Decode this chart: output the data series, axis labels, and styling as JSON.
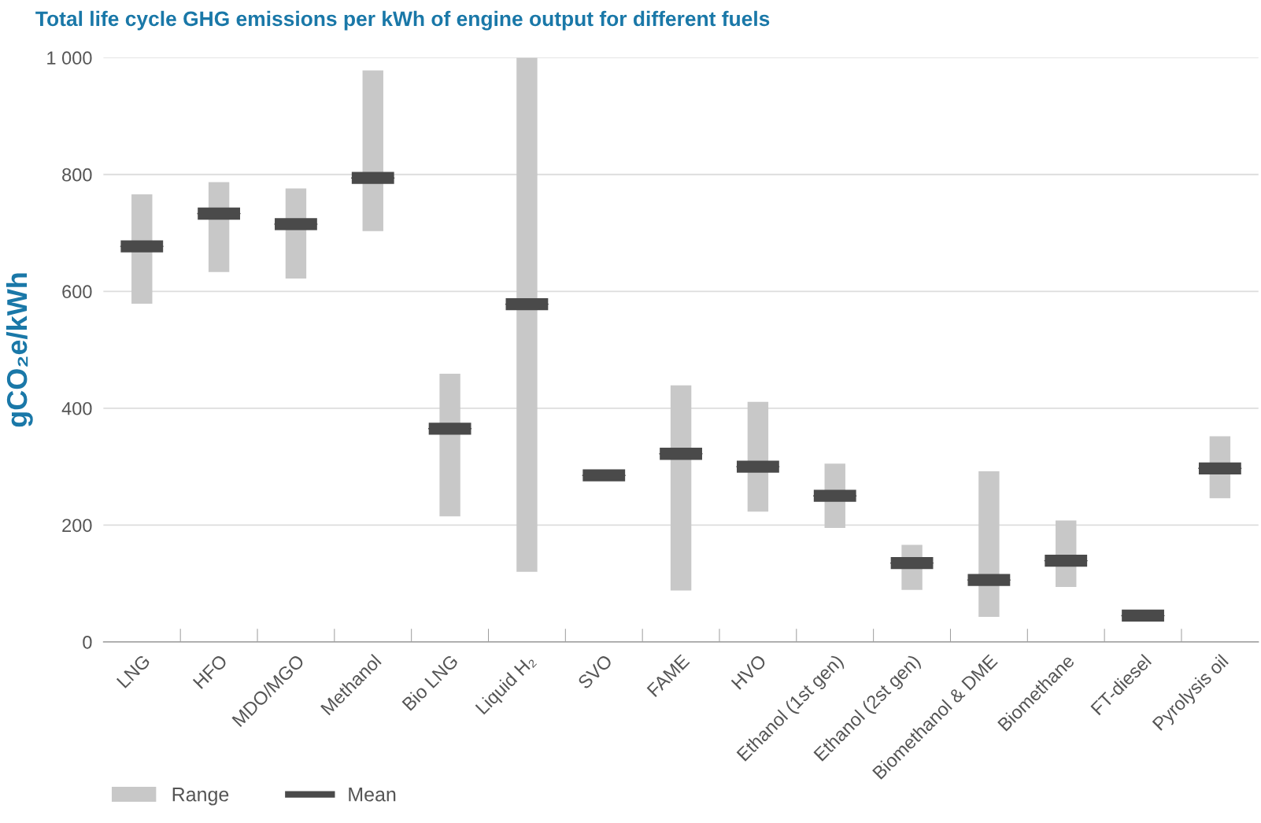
{
  "chart_data": {
    "type": "bar",
    "title": "Total life cycle GHG emissions per kWh of engine output for different fuels",
    "ylabel": "gCO₂e/kWh",
    "categories": [
      "LNG",
      "HFO",
      "MDO/MGO",
      "Methanol",
      "Bio LNG",
      "Liquid H₂",
      "SVO",
      "FAME",
      "HVO",
      "Ethanol (1st gen)",
      "Ethanol (2st gen)",
      "Biomethanol & DME",
      "Biomethane",
      "FT-diesel",
      "Pyrolysis oil"
    ],
    "series": [
      {
        "name": "Range",
        "color": "#c8c8c8",
        "base": [
          579,
          633,
          622,
          703,
          215,
          120,
          null,
          88,
          223,
          195,
          89,
          43,
          94,
          null,
          246
        ],
        "values": [
          187,
          154,
          154,
          275,
          244,
          880,
          null,
          351,
          188,
          110,
          77,
          249,
          114,
          null,
          106
        ]
      },
      {
        "name": "Mean",
        "type": "box",
        "color": "#4a4a4a",
        "boxes": [
          {
            "low": 677,
            "q1": 677,
            "median": 677,
            "q3": 677,
            "high": 677
          },
          {
            "low": 733,
            "q1": 733,
            "median": 733,
            "q3": 733,
            "high": 733
          },
          {
            "low": 715,
            "q1": 715,
            "median": 715,
            "q3": 715,
            "high": 715
          },
          {
            "low": 794,
            "q1": 794,
            "median": 794,
            "q3": 794,
            "high": 794
          },
          {
            "low": 365,
            "q1": 365,
            "median": 365,
            "q3": 365,
            "high": 365
          },
          {
            "low": 578,
            "q1": 578,
            "median": 578,
            "q3": 578,
            "high": 578
          },
          {
            "low": 285,
            "q1": 285,
            "median": 285,
            "q3": 285,
            "high": 285
          },
          {
            "low": 322,
            "q1": 322,
            "median": 322,
            "q3": 322,
            "high": 322
          },
          {
            "low": 300,
            "q1": 300,
            "median": 300,
            "q3": 300,
            "high": 300
          },
          {
            "low": 250,
            "q1": 250,
            "median": 250,
            "q3": 250,
            "high": 250
          },
          {
            "low": 135,
            "q1": 135,
            "median": 135,
            "q3": 135,
            "high": 135
          },
          {
            "low": 106,
            "q1": 106,
            "median": 106,
            "q3": 106,
            "high": 106
          },
          {
            "low": 139,
            "q1": 139,
            "median": 139,
            "q3": 139,
            "high": 139
          },
          {
            "low": 45,
            "q1": 45,
            "median": 45,
            "q3": 45,
            "high": 45
          },
          {
            "low": 297,
            "q1": 297,
            "median": 297,
            "q3": 297,
            "high": 297
          }
        ]
      }
    ],
    "ylim": [
      0,
      1000
    ],
    "yticks": [
      0,
      200,
      400,
      600,
      800,
      {
        "value": 1000,
        "label": "1 000"
      }
    ],
    "grid": "y",
    "legend": "bottom left"
  }
}
